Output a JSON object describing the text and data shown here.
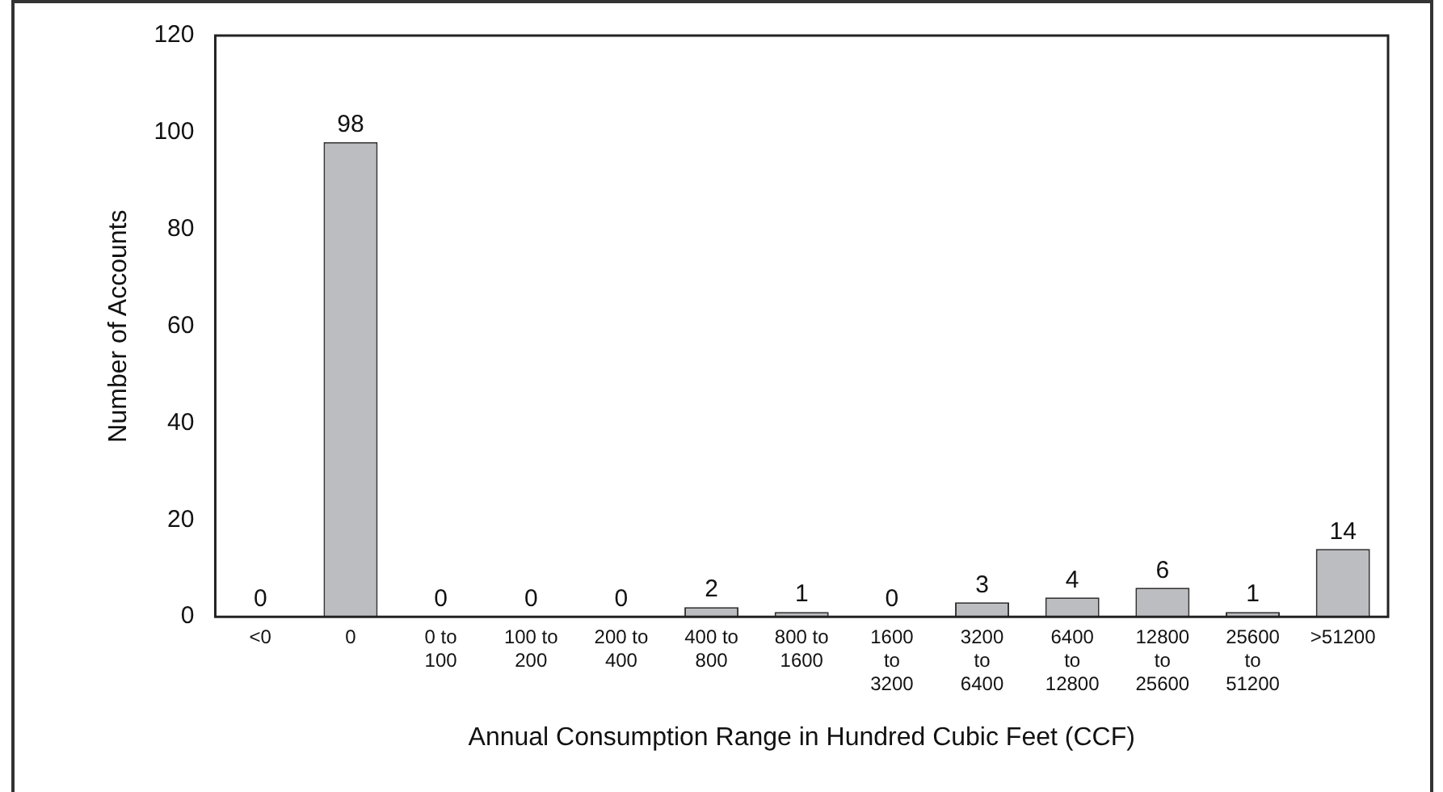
{
  "chart_data": {
    "type": "bar",
    "xlabel": "Annual Consumption Range in Hundred Cubic Feet (CCF)",
    "ylabel": "Number of Accounts",
    "categories": [
      "<0",
      "0",
      "0 to 100",
      "100 to 200",
      "200 to 400",
      "400 to 800",
      "800 to 1600",
      "1600 to 3200",
      "3200 to 6400",
      "6400 to 12800",
      "12800 to 25600",
      "25600 to 51200",
      ">51200"
    ],
    "values": [
      0,
      98,
      0,
      0,
      0,
      2,
      1,
      0,
      3,
      4,
      6,
      1,
      14
    ],
    "color": "#bcbdc1",
    "ylim": [
      0,
      120
    ],
    "yticks": [
      0,
      20,
      40,
      60,
      80,
      100,
      120
    ],
    "grid": false,
    "legend": false,
    "data_labels": true
  }
}
